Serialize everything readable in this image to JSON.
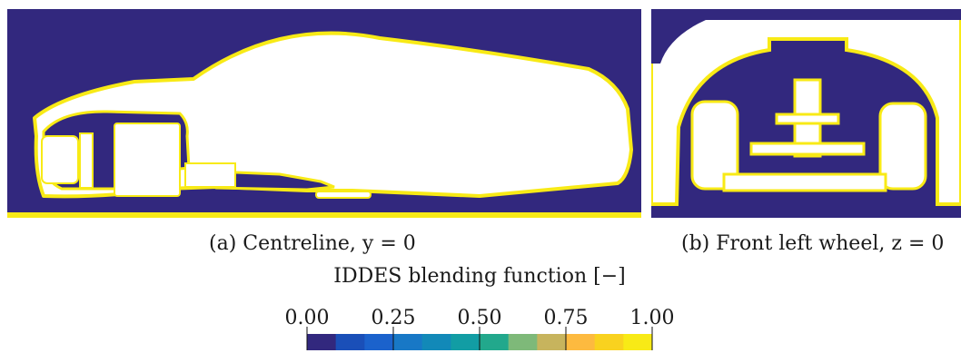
{
  "captions": {
    "a": "(a) Centreline, y = 0",
    "b": "(b) Front left wheel, z = 0"
  },
  "colorbar": {
    "title": "IDDES blending function [−]",
    "ticks": [
      "0.00",
      "0.25",
      "0.50",
      "0.75",
      "1.00"
    ],
    "tick_values": [
      0.0,
      0.25,
      0.5,
      0.75,
      1.0
    ],
    "range": [
      0.0,
      1.0
    ],
    "colors": [
      "#32287e",
      "#1a4fb8",
      "#1b62cc",
      "#1878c6",
      "#1289b8",
      "#129da4",
      "#22a88c",
      "#7eb979",
      "#c7b45d",
      "#fdba3f",
      "#f9d21f",
      "#f8ea16"
    ]
  },
  "fields": {
    "background_color": "#32287e",
    "shell_color": "#f8ea16",
    "body_color": "#ffffff"
  }
}
